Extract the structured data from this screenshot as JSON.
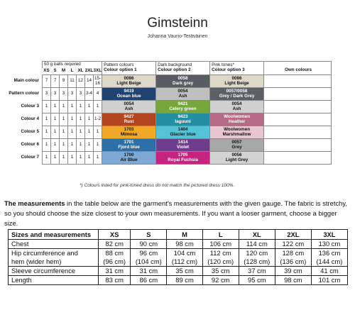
{
  "title": "Gimsteinn",
  "author": "Johanna Vaurio-Teräväinen",
  "chart": {
    "balls_header": "50 g balls required",
    "sizes": [
      "XS",
      "S",
      "M",
      "L",
      "XL",
      "2XL",
      "3XL"
    ],
    "groups": [
      {
        "title": "Pattern colours",
        "sub": "Colour option 1"
      },
      {
        "title": "Dark background",
        "sub": "Colour option 2"
      },
      {
        "title": "Pink tones*",
        "sub": "Colour option 3"
      },
      {
        "title": "",
        "sub": "Own colours"
      }
    ],
    "rows": [
      {
        "label": "Main colour",
        "qty": [
          "7",
          "7",
          "9",
          "11",
          "12",
          "14",
          "15-16"
        ],
        "opts": [
          {
            "code": "0086",
            "name": "Light Beige",
            "bg": "#ddd7c7",
            "fg": "#111"
          },
          {
            "code": "0058",
            "name": "Dark grey",
            "bg": "#5a5c63",
            "fg": "#ffffff"
          },
          {
            "code": "0086",
            "name": "Light Beige",
            "bg": "#ddd7c7",
            "fg": "#111"
          }
        ]
      },
      {
        "label": "Pattern colour",
        "qty": [
          "3",
          "3",
          "3",
          "3",
          "3",
          "3-4",
          "4"
        ],
        "opts": [
          {
            "code": "9419",
            "name": "Ocean blue",
            "bg": "#20436f",
            "fg": "#ffffff"
          },
          {
            "code": "0054",
            "name": "Ash",
            "bg": "#bfbfbf",
            "fg": "#111"
          },
          {
            "code": "0057/0058",
            "name": "Grey / Dark Grey",
            "bg": "#5d5f66",
            "fg": "#ffffff"
          }
        ]
      },
      {
        "label": "Colour 3",
        "qty": [
          "1",
          "1",
          "1",
          "1",
          "1",
          "1",
          "1"
        ],
        "opts": [
          {
            "code": "0054",
            "name": "Ash",
            "bg": "#cfcfcf",
            "fg": "#111"
          },
          {
            "code": "9421",
            "name": "Celery green",
            "bg": "#77a63b",
            "fg": "#ffffff"
          },
          {
            "code": "0054",
            "name": "Ash",
            "bg": "#cfcfcf",
            "fg": "#111"
          }
        ]
      },
      {
        "label": "Colour 4",
        "qty": [
          "1",
          "1",
          "1",
          "1",
          "1",
          "1",
          "1-2"
        ],
        "opts": [
          {
            "code": "9427",
            "name": "Rust",
            "bg": "#b5451f",
            "fg": "#ffffff"
          },
          {
            "code": "9423",
            "name": "laguuni",
            "bg": "#238ea4",
            "fg": "#ffffff"
          },
          {
            "code": "Woolwomen",
            "name": "Heather",
            "bg": "#b56b86",
            "fg": "#ffffff"
          }
        ]
      },
      {
        "label": "Colour 5",
        "qty": [
          "1",
          "1",
          "1",
          "1",
          "1",
          "1",
          "1"
        ],
        "opts": [
          {
            "code": "1703",
            "name": "Mimosa",
            "bg": "#f0a826",
            "fg": "#111"
          },
          {
            "code": "1404",
            "name": "Glacier blue",
            "bg": "#55c3d6",
            "fg": "#111"
          },
          {
            "code": "Woolwomen",
            "name": "Marshmallow",
            "bg": "#e7c5d1",
            "fg": "#111"
          }
        ]
      },
      {
        "label": "Colour 6",
        "qty": [
          "1",
          "1",
          "1",
          "1",
          "1",
          "1",
          "1"
        ],
        "opts": [
          {
            "code": "1701",
            "name": "Fjord blue",
            "bg": "#2f6fa8",
            "fg": "#ffffff"
          },
          {
            "code": "1414",
            "name": "Violet",
            "bg": "#6e3e8c",
            "fg": "#ffffff"
          },
          {
            "code": "0057",
            "name": "Grey",
            "bg": "#a8a8a8",
            "fg": "#111"
          }
        ]
      },
      {
        "label": "Colour 7",
        "qty": [
          "1",
          "1",
          "1",
          "1",
          "1",
          "1",
          "1"
        ],
        "opts": [
          {
            "code": "1700",
            "name": "Air Blue",
            "bg": "#7ea8d6",
            "fg": "#111"
          },
          {
            "code": "1705",
            "name": "Royal Fuchsia",
            "bg": "#c6247e",
            "fg": "#ffffff"
          },
          {
            "code": "0056",
            "name": "Light Grey",
            "bg": "#d3d3d3",
            "fg": "#111"
          }
        ]
      }
    ],
    "note": "*) Colours listed for pink-toned dress do not match the pictured dress 100%."
  },
  "intro": {
    "bold": "The measurements",
    "rest": " in the table below are the garment's measurements with the given gauge. The fabric is stretchy, so you should choose the size closest to your own measurements. If you want a looser garment, choose a bigger size."
  },
  "measurements": {
    "header": [
      "Sizes and measurements",
      "XS",
      "S",
      "M",
      "L",
      "XL",
      "2XL",
      "3XL"
    ],
    "rows": [
      {
        "label": "Chest",
        "values": [
          "82 cm",
          "90 cm",
          "98 cm",
          "106 cm",
          "114 cm",
          "122 cm",
          "130 cm"
        ]
      },
      {
        "label": "Hip circumference and",
        "values": [
          "88 cm",
          "96 cm",
          "104 cm",
          "112 cm",
          "120 cm",
          "128 cm",
          "136 cm"
        ]
      },
      {
        "label": "hem (wider hem)",
        "values": [
          "(96 cm)",
          "(104 cm)",
          "(112 cm)",
          "(120 cm)",
          "(128 cm)",
          "(136 cm)",
          "(144 cm)"
        ],
        "cont": true
      },
      {
        "label": "Sleeve circumference",
        "values": [
          "31 cm",
          "31 cm",
          "35 cm",
          "35 cm",
          "37 cm",
          "39 cm",
          "41 cm"
        ]
      },
      {
        "label": "Length",
        "values": [
          "83 cm",
          "86 cm",
          "89 cm",
          "92 cm",
          "95 cm",
          "98 cm",
          "101 cm"
        ]
      }
    ]
  }
}
